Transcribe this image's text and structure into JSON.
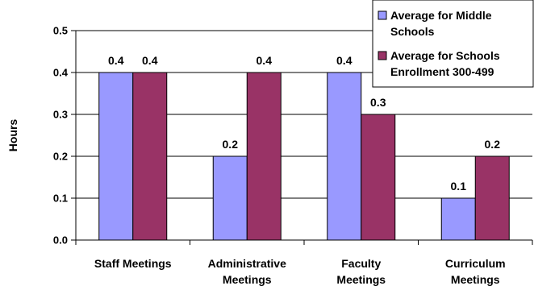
{
  "chart_data": {
    "type": "bar",
    "title": "",
    "xlabel": "",
    "ylabel": "Hours",
    "ylim": [
      0,
      0.5
    ],
    "yticks": [
      "0.0",
      "0.1",
      "0.2",
      "0.3",
      "0.4",
      "0.5"
    ],
    "categories": [
      [
        "Staff Meetings"
      ],
      [
        "Administrative",
        "Meetings"
      ],
      [
        "Faculty",
        "Meetings"
      ],
      [
        "Curriculum",
        "Meetings"
      ]
    ],
    "series": [
      {
        "name": [
          "Average for Middle",
          "Schools"
        ],
        "color": "#9999ff",
        "values": [
          0.4,
          0.2,
          0.4,
          0.1
        ],
        "labels": [
          "0.4",
          "0.2",
          "0.4",
          "0.1"
        ]
      },
      {
        "name": [
          "Average for Schools",
          "Enrollment 300-499"
        ],
        "color": "#993366",
        "values": [
          0.4,
          0.4,
          0.3,
          0.2
        ],
        "labels": [
          "0.4",
          "0.4",
          "0.3",
          "0.2"
        ]
      }
    ],
    "grid": "horizontal",
    "legend": "top-right"
  }
}
